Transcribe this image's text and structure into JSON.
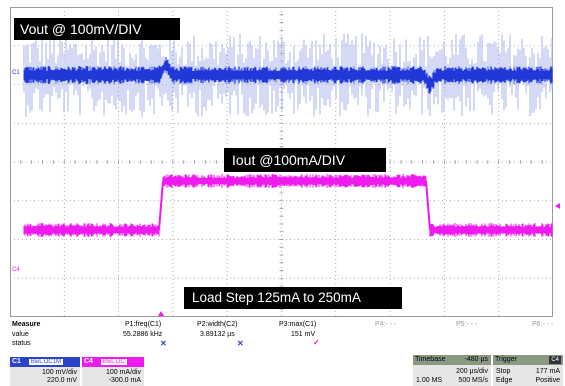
{
  "traces": {
    "vout_label": "Vout @ 100mV/DIV",
    "iout_label": "Iout @100mA/DIV",
    "load_label": "Load Step 125mA to 250mA",
    "c1_marker": "C1",
    "c4_marker": "C4",
    "colors": {
      "c1": "#2038d8",
      "c1_noise": "#a9b4ee",
      "c4": "#ee1aee",
      "grid": "#9a9a9a"
    }
  },
  "measure": {
    "heading": "Measure",
    "row_labels": [
      "value",
      "status"
    ],
    "params": [
      {
        "name": "P1:freq(C1)",
        "value": "55.2886 kHz",
        "status": "x"
      },
      {
        "name": "P2:width(C2)",
        "value": "3.89132 µs",
        "status": "x"
      },
      {
        "name": "P3:max(C1)",
        "value": "151 mV",
        "status": "check"
      },
      {
        "name": "P4:- - -"
      },
      {
        "name": "P5:- - -"
      },
      {
        "name": "P6:- - -"
      }
    ]
  },
  "channels": [
    {
      "name": "C1",
      "tag": "BwL DC1M",
      "line1": "100 mV/div",
      "line2": "220.0 mV",
      "color": "#2a44c8"
    },
    {
      "name": "C4",
      "tag": "BwL DC",
      "line1": "100 mA/div",
      "line2": "-300.0 mA",
      "color": "#ee1aee"
    }
  ],
  "timebase": {
    "label": "Timebase",
    "offset": "-480 µs",
    "line1": "200 µs/div",
    "line2a": "1.00 MS",
    "line2b": "500 MS/s"
  },
  "trigger": {
    "label": "Trigger",
    "source": "C4",
    "line1a": "Stop",
    "line1b": "177 mA",
    "line2a": "Edge",
    "line2b": "Positive"
  }
}
